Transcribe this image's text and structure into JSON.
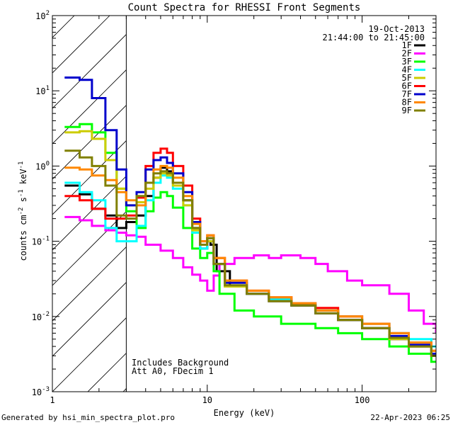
{
  "chart_data": {
    "type": "line",
    "title": "Count Spectra for RHESSI Front Segments",
    "xlabel": "Energy (keV)",
    "ylabel_parts": {
      "base": "counts cm",
      "exp1": "-2",
      "mid": " s",
      "exp2": "-1",
      "unit": " keV",
      "exp3": "-1"
    },
    "xscale": "log",
    "yscale": "log",
    "xlim": [
      1,
      300
    ],
    "ylim": [
      0.001,
      100
    ],
    "x_ticks": [
      {
        "value": 1,
        "label": "1"
      },
      {
        "value": 10,
        "label": "10"
      },
      {
        "value": 100,
        "label": "100"
      }
    ],
    "y_ticks": [
      {
        "value": 0.001,
        "base": "10",
        "exp": "-3"
      },
      {
        "value": 0.01,
        "base": "10",
        "exp": "-2"
      },
      {
        "value": 0.1,
        "base": "10",
        "exp": "-1"
      },
      {
        "value": 1,
        "base": "10",
        "exp": "0"
      },
      {
        "value": 10,
        "base": "10",
        "exp": "1"
      },
      {
        "value": 100,
        "base": "10",
        "exp": "2"
      }
    ],
    "date": "19-Oct-2013",
    "time_range": "21:44:00 to 21:45:00",
    "hatched_region": {
      "xmin": 1,
      "xmax": 3
    },
    "annotations": [
      "Includes Background",
      "Att A0, FDecim 1"
    ],
    "legend_position": "top-right",
    "series": [
      {
        "name": "1F",
        "color": "#000000",
        "points": [
          [
            1.2,
            0.55
          ],
          [
            1.5,
            0.42
          ],
          [
            1.8,
            0.27
          ],
          [
            2.2,
            0.22
          ],
          [
            2.6,
            0.15
          ],
          [
            3.0,
            0.18
          ],
          [
            3.5,
            0.22
          ],
          [
            4.0,
            0.4
          ],
          [
            4.5,
            0.7
          ],
          [
            5.0,
            0.95
          ],
          [
            5.5,
            0.85
          ],
          [
            6.0,
            0.6
          ],
          [
            7.0,
            0.35
          ],
          [
            8.0,
            0.15
          ],
          [
            9.0,
            0.08
          ],
          [
            10.0,
            0.1
          ],
          [
            10.5,
            0.09
          ],
          [
            11.5,
            0.04
          ],
          [
            14,
            0.025
          ],
          [
            18,
            0.02
          ],
          [
            25,
            0.016
          ],
          [
            35,
            0.014
          ],
          [
            50,
            0.012
          ],
          [
            70,
            0.009
          ],
          [
            100,
            0.007
          ],
          [
            150,
            0.005
          ],
          [
            200,
            0.004
          ],
          [
            280,
            0.003
          ]
        ]
      },
      {
        "name": "2F",
        "color": "#ff00ff",
        "points": [
          [
            1.2,
            0.21
          ],
          [
            1.5,
            0.19
          ],
          [
            1.8,
            0.16
          ],
          [
            2.2,
            0.14
          ],
          [
            2.6,
            0.13
          ],
          [
            3.0,
            0.12
          ],
          [
            3.5,
            0.115
          ],
          [
            4.0,
            0.09
          ],
          [
            5.0,
            0.075
          ],
          [
            6.0,
            0.06
          ],
          [
            7.0,
            0.045
          ],
          [
            8.0,
            0.036
          ],
          [
            9.0,
            0.03
          ],
          [
            10.0,
            0.022
          ],
          [
            11.0,
            0.035
          ],
          [
            12.0,
            0.05
          ],
          [
            15,
            0.06
          ],
          [
            20,
            0.065
          ],
          [
            25,
            0.06
          ],
          [
            30,
            0.065
          ],
          [
            40,
            0.06
          ],
          [
            50,
            0.05
          ],
          [
            60,
            0.04
          ],
          [
            80,
            0.03
          ],
          [
            100,
            0.026
          ],
          [
            150,
            0.02
          ],
          [
            200,
            0.012
          ],
          [
            250,
            0.008
          ],
          [
            300,
            0.006
          ]
        ]
      },
      {
        "name": "3F",
        "color": "#00ff00",
        "points": [
          [
            1.2,
            3.3
          ],
          [
            1.5,
            3.6
          ],
          [
            1.8,
            2.8
          ],
          [
            2.2,
            1.5
          ],
          [
            2.6,
            0.5
          ],
          [
            3.0,
            0.25
          ],
          [
            3.5,
            0.15
          ],
          [
            4.0,
            0.25
          ],
          [
            4.5,
            0.38
          ],
          [
            5.0,
            0.45
          ],
          [
            5.5,
            0.4
          ],
          [
            6.0,
            0.28
          ],
          [
            7.0,
            0.15
          ],
          [
            8.0,
            0.08
          ],
          [
            9.0,
            0.06
          ],
          [
            10.0,
            0.07
          ],
          [
            11.0,
            0.04
          ],
          [
            12.0,
            0.02
          ],
          [
            15,
            0.012
          ],
          [
            20,
            0.01
          ],
          [
            30,
            0.008
          ],
          [
            50,
            0.007
          ],
          [
            70,
            0.006
          ],
          [
            100,
            0.005
          ],
          [
            150,
            0.004
          ],
          [
            200,
            0.0032
          ],
          [
            280,
            0.0025
          ]
        ]
      },
      {
        "name": "4F",
        "color": "#00ffff",
        "points": [
          [
            1.2,
            0.6
          ],
          [
            1.5,
            0.45
          ],
          [
            1.8,
            0.35
          ],
          [
            2.2,
            0.15
          ],
          [
            2.6,
            0.1
          ],
          [
            3.0,
            0.1
          ],
          [
            3.5,
            0.16
          ],
          [
            4.0,
            0.35
          ],
          [
            4.5,
            0.6
          ],
          [
            5.0,
            0.75
          ],
          [
            5.5,
            0.7
          ],
          [
            6.0,
            0.5
          ],
          [
            7.0,
            0.3
          ],
          [
            8.0,
            0.13
          ],
          [
            9.0,
            0.08
          ],
          [
            10.0,
            0.1
          ],
          [
            11.0,
            0.05
          ],
          [
            13,
            0.025
          ],
          [
            18,
            0.02
          ],
          [
            25,
            0.017
          ],
          [
            35,
            0.015
          ],
          [
            50,
            0.012
          ],
          [
            70,
            0.01
          ],
          [
            100,
            0.008
          ],
          [
            150,
            0.006
          ],
          [
            200,
            0.005
          ],
          [
            280,
            0.004
          ]
        ]
      },
      {
        "name": "5F",
        "color": "#cccc00",
        "points": [
          [
            1.2,
            2.8
          ],
          [
            1.5,
            2.9
          ],
          [
            1.8,
            2.3
          ],
          [
            2.2,
            1.2
          ],
          [
            2.6,
            0.5
          ],
          [
            3.0,
            0.3
          ],
          [
            3.5,
            0.33
          ],
          [
            4.0,
            0.5
          ],
          [
            4.5,
            0.7
          ],
          [
            5.0,
            0.8
          ],
          [
            5.5,
            0.75
          ],
          [
            6.0,
            0.55
          ],
          [
            7.0,
            0.3
          ],
          [
            8.0,
            0.14
          ],
          [
            9.0,
            0.09
          ],
          [
            10.0,
            0.1
          ],
          [
            11.0,
            0.05
          ],
          [
            13,
            0.025
          ],
          [
            18,
            0.02
          ],
          [
            25,
            0.016
          ],
          [
            35,
            0.014
          ],
          [
            50,
            0.012
          ],
          [
            70,
            0.009
          ],
          [
            100,
            0.007
          ],
          [
            150,
            0.005
          ],
          [
            200,
            0.004
          ],
          [
            280,
            0.003
          ]
        ]
      },
      {
        "name": "6F",
        "color": "#ff0000",
        "points": [
          [
            1.2,
            0.4
          ],
          [
            1.5,
            0.35
          ],
          [
            1.8,
            0.27
          ],
          [
            2.2,
            0.2
          ],
          [
            2.6,
            0.2
          ],
          [
            3.0,
            0.22
          ],
          [
            3.5,
            0.38
          ],
          [
            4.0,
            1.0
          ],
          [
            4.5,
            1.5
          ],
          [
            5.0,
            1.7
          ],
          [
            5.5,
            1.5
          ],
          [
            6.0,
            1.0
          ],
          [
            7.0,
            0.55
          ],
          [
            8.0,
            0.2
          ],
          [
            9.0,
            0.1
          ],
          [
            10.0,
            0.12
          ],
          [
            11.0,
            0.06
          ],
          [
            13,
            0.03
          ],
          [
            18,
            0.022
          ],
          [
            25,
            0.018
          ],
          [
            35,
            0.015
          ],
          [
            50,
            0.013
          ],
          [
            70,
            0.01
          ],
          [
            100,
            0.008
          ],
          [
            150,
            0.006
          ],
          [
            200,
            0.0045
          ],
          [
            280,
            0.0035
          ]
        ]
      },
      {
        "name": "7F",
        "color": "#0000cc",
        "points": [
          [
            1.2,
            15
          ],
          [
            1.5,
            14
          ],
          [
            1.8,
            8
          ],
          [
            2.2,
            3.0
          ],
          [
            2.6,
            0.9
          ],
          [
            3.0,
            0.3
          ],
          [
            3.5,
            0.45
          ],
          [
            4.0,
            0.9
          ],
          [
            4.5,
            1.2
          ],
          [
            5.0,
            1.3
          ],
          [
            5.5,
            1.1
          ],
          [
            6.0,
            0.8
          ],
          [
            7.0,
            0.45
          ],
          [
            8.0,
            0.18
          ],
          [
            9.0,
            0.09
          ],
          [
            10.0,
            0.11
          ],
          [
            11.0,
            0.05
          ],
          [
            13,
            0.028
          ],
          [
            18,
            0.02
          ],
          [
            25,
            0.016
          ],
          [
            35,
            0.014
          ],
          [
            50,
            0.011
          ],
          [
            70,
            0.009
          ],
          [
            100,
            0.007
          ],
          [
            150,
            0.0055
          ],
          [
            200,
            0.0042
          ],
          [
            280,
            0.0032
          ]
        ]
      },
      {
        "name": "8F",
        "color": "#ff8800",
        "points": [
          [
            1.2,
            0.95
          ],
          [
            1.5,
            0.9
          ],
          [
            1.8,
            0.75
          ],
          [
            2.2,
            0.65
          ],
          [
            2.6,
            0.45
          ],
          [
            3.0,
            0.35
          ],
          [
            3.5,
            0.3
          ],
          [
            4.0,
            0.6
          ],
          [
            4.5,
            0.9
          ],
          [
            5.0,
            1.0
          ],
          [
            5.5,
            0.95
          ],
          [
            6.0,
            0.7
          ],
          [
            7.0,
            0.4
          ],
          [
            8.0,
            0.17
          ],
          [
            9.0,
            0.1
          ],
          [
            10.0,
            0.12
          ],
          [
            11.0,
            0.06
          ],
          [
            13,
            0.03
          ],
          [
            18,
            0.022
          ],
          [
            25,
            0.018
          ],
          [
            35,
            0.015
          ],
          [
            50,
            0.012
          ],
          [
            70,
            0.01
          ],
          [
            100,
            0.008
          ],
          [
            150,
            0.006
          ],
          [
            200,
            0.0045
          ],
          [
            280,
            0.0035
          ]
        ]
      },
      {
        "name": "9F",
        "color": "#808000",
        "points": [
          [
            1.2,
            1.6
          ],
          [
            1.5,
            1.3
          ],
          [
            1.8,
            1.0
          ],
          [
            2.2,
            0.55
          ],
          [
            2.6,
            0.22
          ],
          [
            3.0,
            0.2
          ],
          [
            3.5,
            0.4
          ],
          [
            4.0,
            0.6
          ],
          [
            4.5,
            0.8
          ],
          [
            5.0,
            0.85
          ],
          [
            5.5,
            0.8
          ],
          [
            6.0,
            0.6
          ],
          [
            7.0,
            0.35
          ],
          [
            8.0,
            0.15
          ],
          [
            9.0,
            0.09
          ],
          [
            10.0,
            0.11
          ],
          [
            11.0,
            0.05
          ],
          [
            13,
            0.026
          ],
          [
            18,
            0.02
          ],
          [
            25,
            0.016
          ],
          [
            35,
            0.014
          ],
          [
            50,
            0.011
          ],
          [
            70,
            0.009
          ],
          [
            100,
            0.007
          ],
          [
            150,
            0.0052
          ],
          [
            200,
            0.004
          ],
          [
            280,
            0.003
          ]
        ]
      }
    ]
  },
  "footer": {
    "generated": "Generated by hsi_min_spectra_plot.pro",
    "timestamp": "22-Apr-2023 06:25"
  }
}
